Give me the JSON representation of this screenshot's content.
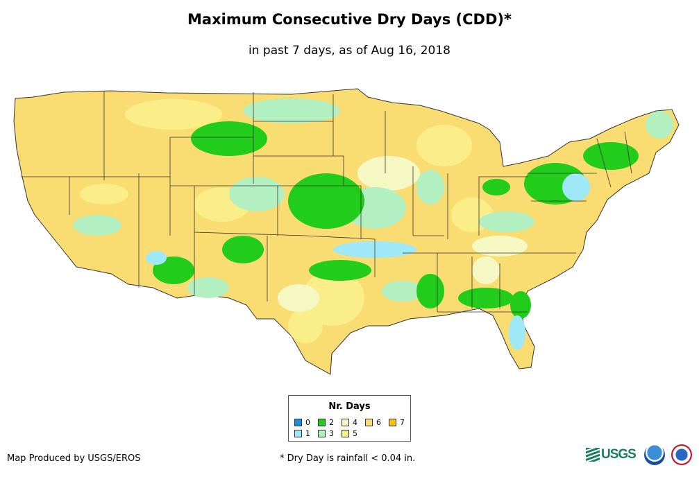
{
  "title": "Maximum Consecutive Dry Days (CDD)*",
  "subtitle": "in past 7 days, as of Aug 16, 2018",
  "legend": {
    "title": "Nr. Days",
    "items": [
      {
        "label": "0",
        "color": "#1e90d8"
      },
      {
        "label": "1",
        "color": "#9ee8f8"
      },
      {
        "label": "2",
        "color": "#22cc1a"
      },
      {
        "label": "3",
        "color": "#b2f0c2"
      },
      {
        "label": "4",
        "color": "#f6f8c4"
      },
      {
        "label": "5",
        "color": "#fbf08c"
      },
      {
        "label": "6",
        "color": "#f9dc72"
      },
      {
        "label": "7",
        "color": "#f5c400"
      }
    ]
  },
  "credit": "Map Produced by USGS/EROS",
  "footnote": "* Dry Day is rainfall < 0.04 in.",
  "logos": {
    "usgs": "USGS",
    "usgs_color": "#1a7f5a",
    "noaa": "noaa-logo",
    "nws": "nws-logo"
  },
  "map": {
    "land_color": "#f9dc72",
    "border_color": "#333333"
  }
}
